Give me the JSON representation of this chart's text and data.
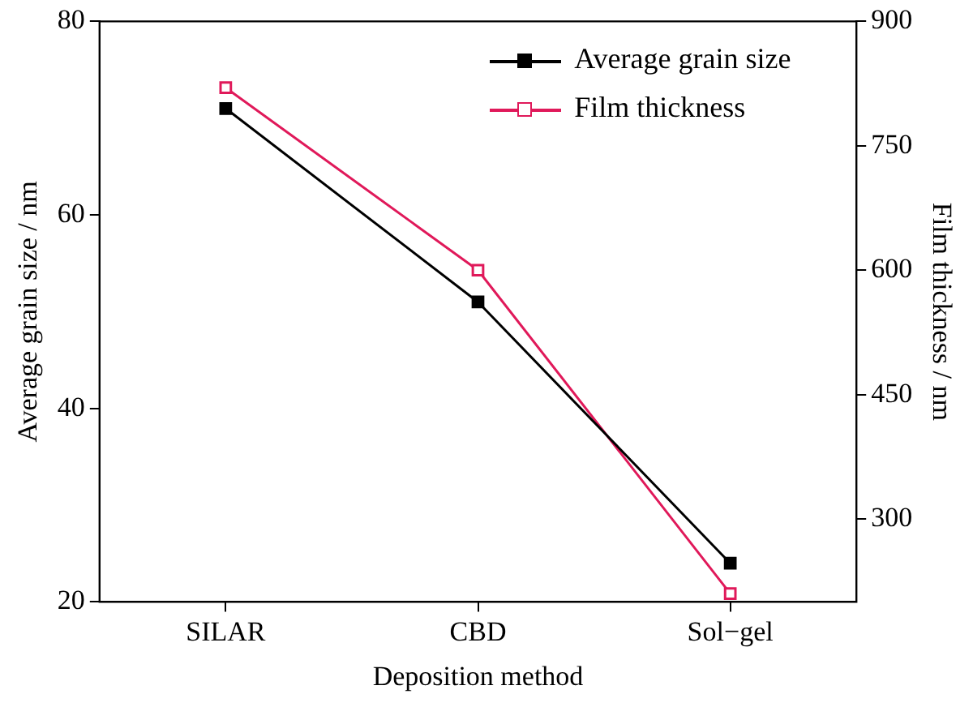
{
  "chart_data": {
    "type": "line",
    "xlabel": "Deposition method",
    "ylabel": "Average grain size / nm",
    "y2label": "Film thickness / nm",
    "categories": [
      "SILAR",
      "CBD",
      "Sol−gel"
    ],
    "series": [
      {
        "name": "Average grain size",
        "color": "#000000",
        "values": [
          71,
          51,
          24
        ]
      },
      {
        "name": "Film thickness",
        "color": "#e0195a",
        "values": [
          820,
          600,
          210
        ],
        "axis": "y2"
      }
    ],
    "ylim": [
      20,
      80
    ],
    "yticks": [
      20,
      40,
      60,
      80
    ],
    "y2lim": [
      200,
      900
    ],
    "y2ticks": [
      300,
      450,
      600,
      750,
      900
    ],
    "legend": "top right",
    "marker": "square",
    "grid": false
  }
}
